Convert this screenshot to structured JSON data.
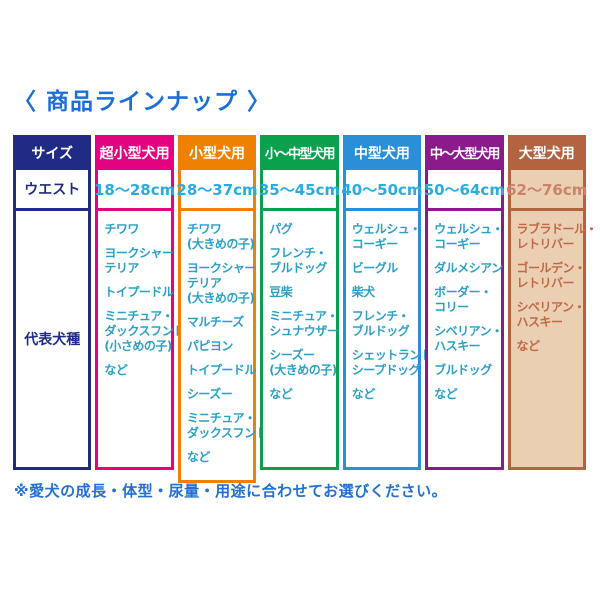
{
  "title": "〈 商品ラインナップ 〉",
  "note": "※愛犬の成長・体型・尿量・用途に合わせてお選びください。",
  "colors": {
    "title": "#1c6fd6",
    "note": "#2270d4"
  },
  "label_column": {
    "header": "サイズ",
    "waist_label": "ウエスト",
    "breeds_label": "代表犬種",
    "color": "#1f2b85",
    "cell_bg": "#ffffff"
  },
  "columns": [
    {
      "header": "超小型犬用",
      "waist": "18〜28cm",
      "color": "#e20380",
      "cell_bg": "#ffffff",
      "waist_color": "#29ace2",
      "breed_color": "#2ba0c6",
      "breeds": [
        "チワワ",
        "ヨークシャー・\nテリア",
        "トイプードル",
        "ミニチュア・\nダックスフンド\n(小さめの子)",
        "など"
      ]
    },
    {
      "header": "小型犬用",
      "waist": "28〜37cm",
      "color": "#ee8200",
      "cell_bg": "#ffffff",
      "waist_color": "#29ace2",
      "breed_color": "#2ba0c6",
      "breeds": [
        "チワワ\n(大きめの子)",
        "ヨークシャー・\nテリア\n(大きめの子)",
        "マルチーズ",
        "パピヨン",
        "トイプードル",
        "シーズー",
        "ミニチュア・\nダックスフンド",
        "など"
      ]
    },
    {
      "header": "小〜中型犬用",
      "waist": "35〜45cm",
      "color": "#09a14e",
      "cell_bg": "#ffffff",
      "waist_color": "#29ace2",
      "breed_color": "#2ba0c6",
      "breeds": [
        "パグ",
        "フレンチ・\nブルドッグ",
        "豆柴",
        "ミニチュア・\nシュナウザー",
        "シーズー\n(大きめの子)",
        "など"
      ]
    },
    {
      "header": "中型犬用",
      "waist": "40〜50cm",
      "color": "#2a8fd7",
      "cell_bg": "#ffffff",
      "waist_color": "#29ace2",
      "breed_color": "#2ba0c6",
      "breeds": [
        "ウェルシュ・\nコーギー",
        "ビーグル",
        "柴犬",
        "フレンチ・\nブルドッグ",
        "シェットランド・\nシープドッグ",
        "など"
      ]
    },
    {
      "header": "中〜大型犬用",
      "waist": "50〜64cm",
      "color": "#8b1b8d",
      "cell_bg": "#ffffff",
      "waist_color": "#29ace2",
      "breed_color": "#2ba0c6",
      "breeds": [
        "ウェルシュ・\nコーギー",
        "ダルメシアン",
        "ボーダー・\nコリー",
        "シベリアン・\nハスキー",
        "ブルドッグ",
        "など"
      ]
    },
    {
      "header": "大型犬用",
      "waist": "62〜76cm",
      "color": "#b26441",
      "cell_bg": "#ebcfb2",
      "waist_color": "#ca8268",
      "breed_color": "#c06945",
      "breeds": [
        "ラブラドール・\nレトリバー",
        "ゴールデン・\nレトリバー",
        "シベリアン・\nハスキー",
        "など"
      ]
    }
  ]
}
